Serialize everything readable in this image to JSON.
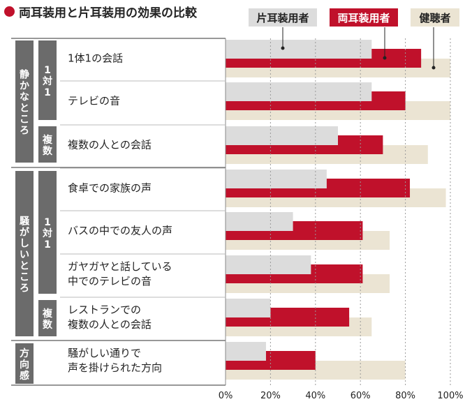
{
  "title": "両耳装用と片耳装用の効果の比較",
  "colors": {
    "accent": "#c0112b",
    "one_ear": "#dcdcdc",
    "both_ears": "#c0112b",
    "normal": "#ebe4d3",
    "group_box": "#6b6b6b",
    "group_text": "#ffffff",
    "grid": "#9a9a9a"
  },
  "legend": [
    {
      "label": "片耳装用者",
      "color": "#dcdcdc",
      "text_color": "#222222"
    },
    {
      "label": "両耳装用者",
      "color": "#c0112b",
      "text_color": "#ffffff"
    },
    {
      "label": "健聴者",
      "color": "#ebe4d3",
      "text_color": "#222222"
    }
  ],
  "groups": [
    {
      "label": "静かなところ",
      "subgroups": [
        {
          "label": "1対1",
          "rows": [
            0,
            1
          ]
        },
        {
          "label": "複数",
          "rows": [
            2
          ]
        }
      ]
    },
    {
      "label": "騒がしいところ",
      "subgroups": [
        {
          "label": "1対1",
          "rows": [
            3,
            4,
            5
          ]
        },
        {
          "label": "複数",
          "rows": [
            6
          ]
        }
      ]
    },
    {
      "label": "方向感",
      "subgroups": [
        {
          "label": "",
          "rows": [
            7
          ]
        }
      ]
    }
  ],
  "chart_data": {
    "type": "bar",
    "orientation": "horizontal",
    "title": "両耳装用と片耳装用の効果の比較",
    "categories": [
      [
        "1体1の会話"
      ],
      [
        "テレビの音"
      ],
      [
        "複数の人との会話"
      ],
      [
        "食卓での家族の声"
      ],
      [
        "バスの中での友人の声"
      ],
      [
        "ガヤガヤと話している",
        "中でのテレビの音"
      ],
      [
        "レストランでの",
        "複数の人との会話"
      ],
      [
        "騒がしい通りで",
        "声を掛けられた方向"
      ]
    ],
    "series": [
      {
        "name": "片耳装用者",
        "values": [
          65,
          65,
          50,
          45,
          30,
          38,
          20,
          18
        ]
      },
      {
        "name": "両耳装用者",
        "values": [
          87,
          80,
          70,
          82,
          61,
          61,
          55,
          40
        ]
      },
      {
        "name": "健聴者",
        "values": [
          100,
          100,
          90,
          98,
          73,
          73,
          65,
          80
        ]
      }
    ],
    "xlim": [
      0,
      100
    ],
    "xticks": [
      "0%",
      "20%",
      "40%",
      "60%",
      "80%",
      "100%"
    ],
    "grid": true,
    "legend_position": "top-right"
  }
}
